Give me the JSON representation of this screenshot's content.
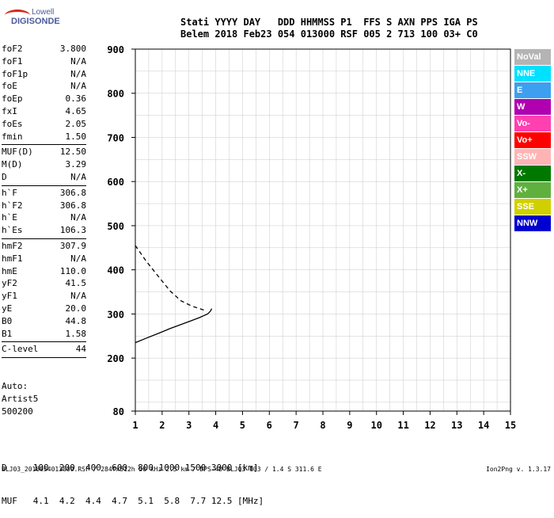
{
  "logo": {
    "line1": "Lowell",
    "line2": "DIGISONDE"
  },
  "header": {
    "line1": "Stati YYYY DAY   DDD HHMMSS P1  FFS S AXN PPS IGA PS",
    "line2": "Belem 2018 Feb23 054 013000 RSF 005 2 713 100 03+ C0"
  },
  "params": [
    {
      "k": "foF2",
      "v": "3.800"
    },
    {
      "k": "foF1",
      "v": "N/A"
    },
    {
      "k": "foF1p",
      "v": "N/A"
    },
    {
      "k": "foE",
      "v": "N/A"
    },
    {
      "k": "foEp",
      "v": "0.36"
    },
    {
      "k": "fxI",
      "v": "4.65"
    },
    {
      "k": "foEs",
      "v": "2.05"
    },
    {
      "k": "fmin",
      "v": "1.50",
      "sep": true
    },
    {
      "k": "MUF(D)",
      "v": "12.50"
    },
    {
      "k": "M(D)",
      "v": "3.29"
    },
    {
      "k": "D",
      "v": "N/A",
      "sep": true
    },
    {
      "k": "h`F",
      "v": "306.8"
    },
    {
      "k": "h`F2",
      "v": "306.8"
    },
    {
      "k": "h`E",
      "v": "N/A"
    },
    {
      "k": "h`Es",
      "v": "106.3",
      "sep": true
    },
    {
      "k": "hmF2",
      "v": "307.9"
    },
    {
      "k": "hmF1",
      "v": "N/A"
    },
    {
      "k": "hmE",
      "v": "110.0"
    },
    {
      "k": "yF2",
      "v": "41.5"
    },
    {
      "k": "yF1",
      "v": "N/A"
    },
    {
      "k": "yE",
      "v": "20.0"
    },
    {
      "k": "B0",
      "v": "44.8"
    },
    {
      "k": "B1",
      "v": "1.58",
      "sep": true
    },
    {
      "k": "C-level",
      "v": "44",
      "sep": true
    }
  ],
  "auto_block": [
    "Auto:",
    "Artist5",
    "500200"
  ],
  "legend": [
    {
      "label": "NoVal",
      "color": "#b4b4b4"
    },
    {
      "label": "NNE",
      "color": "#00e0ff"
    },
    {
      "label": "E",
      "color": "#3c9ff0"
    },
    {
      "label": "W",
      "color": "#b000b0"
    },
    {
      "label": "Vo-",
      "color": "#ff40b0"
    },
    {
      "label": "Vo+",
      "color": "#ff0000"
    },
    {
      "label": "SSW",
      "color": "#ffb4b4"
    },
    {
      "label": "X-",
      "color": "#007800"
    },
    {
      "label": "X+",
      "color": "#60b040"
    },
    {
      "label": "SSE",
      "color": "#d0d000"
    },
    {
      "label": "NNW",
      "color": "#0000d0"
    }
  ],
  "bottom": {
    "d_row": "D     100  200  400  600  800 1000 1500 3000 [km]",
    "muf_row": "MUF   4.1  4.2  4.4  4.7  5.1  5.8  7.7 12.5 [MHz]"
  },
  "footer": {
    "left": "BLJ03_2018054013000.RSF / 284fx512h 50 kHz 2.5 km / DPS-4D BLJ03 103 / 1.4 S 311.6 E",
    "right": "Ion2Png v. 1.3.17"
  },
  "chart_data": {
    "type": "scatter",
    "xlabel": "",
    "ylabel": "",
    "xlim": [
      1,
      15
    ],
    "ylim": [
      80,
      900
    ],
    "x_ticks": [
      1,
      2,
      3,
      4,
      5,
      6,
      7,
      8,
      9,
      10,
      11,
      12,
      13,
      14,
      15
    ],
    "y_ticks": [
      80,
      200,
      300,
      400,
      500,
      600,
      700,
      800,
      900
    ],
    "grid": true,
    "series": [
      {
        "name": "",
        "color": "#000000",
        "style": "dashed",
        "x": [
          1.0,
          1.4,
          1.9,
          2.3,
          2.7,
          3.1,
          3.4,
          3.6
        ],
        "y": [
          455,
          420,
          382,
          352,
          330,
          318,
          312,
          308
        ]
      },
      {
        "name": "",
        "color": "#000000",
        "style": "solid",
        "x": [
          1.0,
          1.4,
          1.9,
          2.3,
          2.7,
          3.1,
          3.4,
          3.7,
          3.8,
          3.85
        ],
        "y": [
          235,
          245,
          257,
          267,
          276,
          285,
          292,
          300,
          306,
          312
        ]
      }
    ]
  }
}
